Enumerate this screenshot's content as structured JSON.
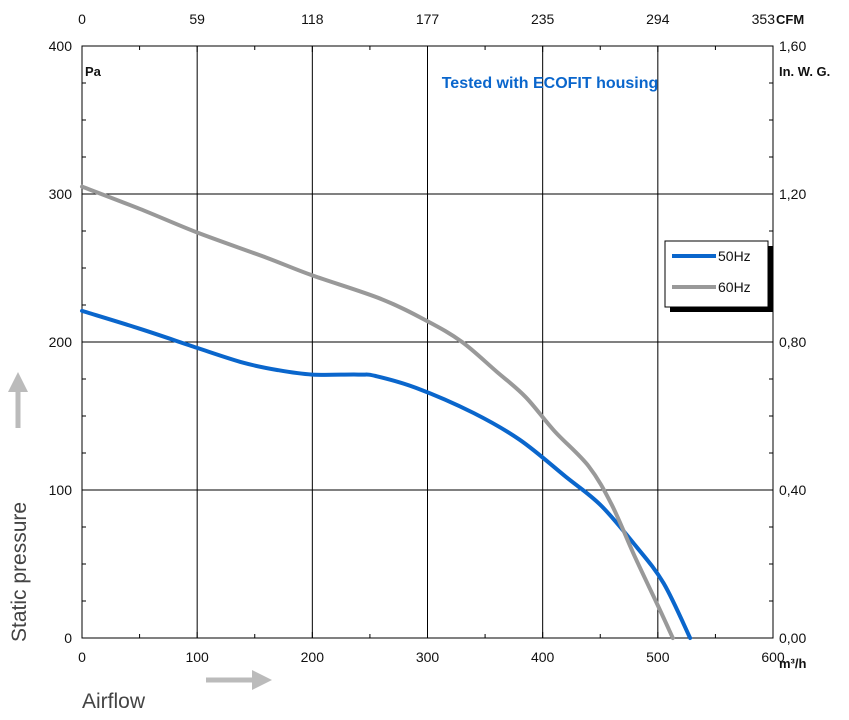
{
  "chart_data": {
    "type": "line",
    "annotation": "Tested with ECOFIT housing",
    "xlabel": "Airflow",
    "ylabel": "Static pressure",
    "x_unit": "m³/h",
    "y_unit": "Pa",
    "x2_unit": "CFM",
    "y2_unit": "In. W. G.",
    "xlim": [
      0,
      600
    ],
    "ylim": [
      0,
      400
    ],
    "x_ticks": [
      "0",
      "100",
      "200",
      "300",
      "400",
      "500",
      "600"
    ],
    "y_ticks": [
      "0",
      "100",
      "200",
      "300",
      "400"
    ],
    "x2_ticks": [
      "0",
      "59",
      "118",
      "177",
      "235",
      "294",
      "353"
    ],
    "y2_ticks": [
      "0,00",
      "0,40",
      "0,80",
      "1,20",
      "1,60"
    ],
    "grid": true,
    "legend_position": "right",
    "series": [
      {
        "name": "50Hz",
        "color": "#0a66cc",
        "points": [
          [
            0,
            221
          ],
          [
            50,
            209
          ],
          [
            100,
            196
          ],
          [
            140,
            186
          ],
          [
            170,
            181
          ],
          [
            200,
            178
          ],
          [
            240,
            178
          ],
          [
            255,
            177
          ],
          [
            290,
            169
          ],
          [
            340,
            152
          ],
          [
            380,
            134
          ],
          [
            420,
            109
          ],
          [
            450,
            90
          ],
          [
            480,
            63
          ],
          [
            505,
            37
          ],
          [
            528,
            0
          ]
        ]
      },
      {
        "name": "60Hz",
        "color": "#999999",
        "points": [
          [
            0,
            305
          ],
          [
            50,
            290
          ],
          [
            100,
            274
          ],
          [
            160,
            257
          ],
          [
            200,
            245
          ],
          [
            260,
            229
          ],
          [
            300,
            214
          ],
          [
            330,
            200
          ],
          [
            360,
            180
          ],
          [
            385,
            163
          ],
          [
            410,
            140
          ],
          [
            440,
            116
          ],
          [
            460,
            90
          ],
          [
            480,
            55
          ],
          [
            500,
            22
          ],
          [
            513,
            0
          ]
        ]
      }
    ]
  }
}
